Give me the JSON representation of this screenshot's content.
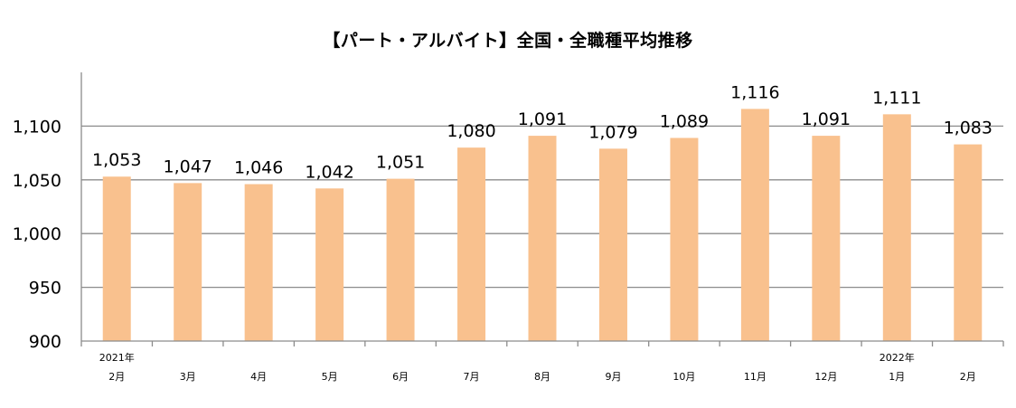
{
  "chart_data": {
    "type": "bar",
    "title": "【パート・アルバイト】全国・全職種平均推移",
    "xlabel": "",
    "ylabel": "",
    "ylim": [
      900,
      1150
    ],
    "yticks": [
      "900",
      "950",
      "1,000",
      "1,050",
      "1,100"
    ],
    "grid": true,
    "legend": "none",
    "bar_color": "#F9C18E",
    "categories": [
      {
        "year": "2021年",
        "month": "2月"
      },
      {
        "year": "",
        "month": "3月"
      },
      {
        "year": "",
        "month": "4月"
      },
      {
        "year": "",
        "month": "5月"
      },
      {
        "year": "",
        "month": "6月"
      },
      {
        "year": "",
        "month": "7月"
      },
      {
        "year": "",
        "month": "8月"
      },
      {
        "year": "",
        "month": "9月"
      },
      {
        "year": "",
        "month": "10月"
      },
      {
        "year": "",
        "month": "11月"
      },
      {
        "year": "",
        "month": "12月"
      },
      {
        "year": "2022年",
        "month": "1月"
      },
      {
        "year": "",
        "month": "2月"
      }
    ],
    "values": [
      1053,
      1047,
      1046,
      1042,
      1051,
      1080,
      1091,
      1079,
      1089,
      1116,
      1091,
      1111,
      1083
    ],
    "data_labels": [
      "1,053",
      "1,047",
      "1,046",
      "1,042",
      "1,051",
      "1,080",
      "1,091",
      "1,079",
      "1,089",
      "1,116",
      "1,091",
      "1,111",
      "1,083"
    ]
  }
}
